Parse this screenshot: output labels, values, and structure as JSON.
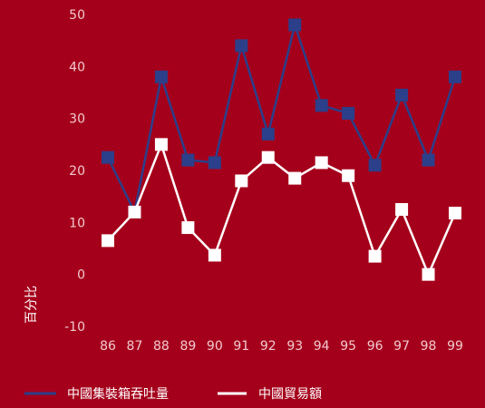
{
  "chart_data": {
    "type": "line",
    "title": "",
    "xlabel": "",
    "ylabel": "百分比",
    "ylim": [
      -10,
      50
    ],
    "yticks": [
      50,
      40,
      30,
      20,
      10,
      0,
      -10
    ],
    "categories": [
      "86",
      "87",
      "88",
      "89",
      "90",
      "91",
      "92",
      "93",
      "94",
      "95",
      "96",
      "97",
      "98",
      "99"
    ],
    "grid": false,
    "legend": "bottom",
    "series": [
      {
        "name": "中國集裝箱吞吐量",
        "color": "#2b3f8a",
        "values": [
          22.5,
          12,
          38,
          22,
          21.5,
          44,
          27,
          48,
          32.5,
          31,
          21,
          34.5,
          22,
          38
        ]
      },
      {
        "name": "中國貿易額",
        "color": "#ffffff",
        "values": [
          6.5,
          12,
          25,
          9,
          3.7,
          18,
          22.5,
          18.5,
          21.5,
          19,
          3.5,
          12.5,
          0,
          11.8
        ]
      }
    ]
  }
}
